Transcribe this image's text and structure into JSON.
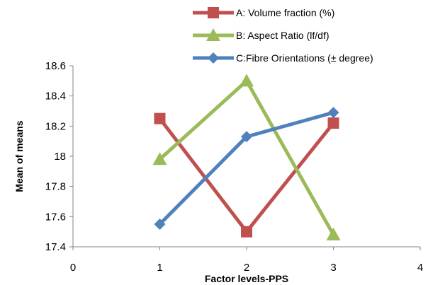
{
  "chart_data": {
    "type": "line",
    "xlabel": "Factor levels-PPS",
    "ylabel": "Mean of means",
    "xlim": [
      0,
      4
    ],
    "ylim": [
      17.4,
      18.6
    ],
    "x_ticks": [
      "0",
      "1",
      "2",
      "3",
      "4"
    ],
    "y_ticks": [
      "17.4",
      "17.6",
      "17.8",
      "18",
      "18.2",
      "18.4",
      "18.6"
    ],
    "grid": false,
    "legend_position": "top",
    "series": [
      {
        "name": "A: Volume fraction (%)",
        "color": "#C0504D",
        "marker": "square",
        "x": [
          1,
          2,
          3
        ],
        "y": [
          18.25,
          17.5,
          18.22
        ]
      },
      {
        "name": "B: Aspect Ratio (lf/df)",
        "color": "#9BBB59",
        "marker": "triangle",
        "x": [
          1,
          2,
          3
        ],
        "y": [
          17.98,
          18.5,
          17.48
        ]
      },
      {
        "name": "C:Fibre Orientations (± degree)",
        "color": "#4F81BD",
        "marker": "diamond",
        "x": [
          1,
          2,
          3
        ],
        "y": [
          17.55,
          18.13,
          18.29
        ]
      }
    ]
  }
}
